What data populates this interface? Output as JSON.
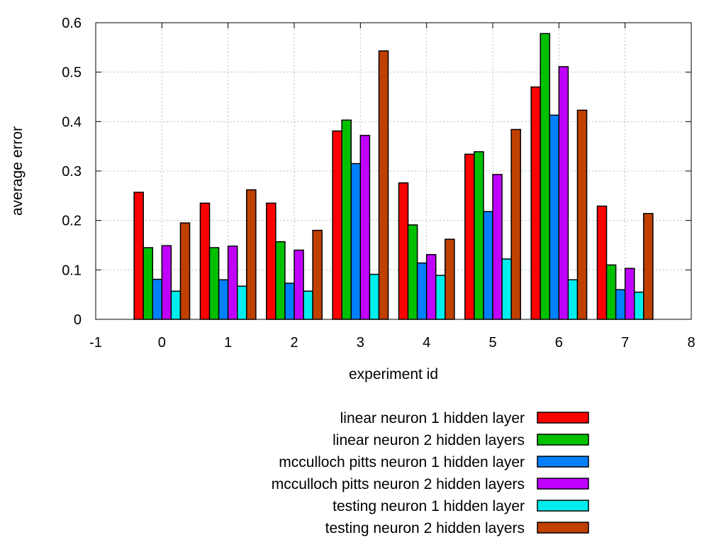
{
  "chart_data": {
    "type": "bar",
    "title": "",
    "xlabel": "experiment id",
    "ylabel": "average error",
    "xlim": [
      -1,
      8
    ],
    "ylim": [
      0,
      0.6
    ],
    "xticks": [
      "-1",
      "0",
      "1",
      "2",
      "3",
      "4",
      "5",
      "6",
      "7",
      "8"
    ],
    "yticks": [
      "0",
      "0.1",
      "0.2",
      "0.3",
      "0.4",
      "0.5",
      "0.6"
    ],
    "grid": true,
    "legend_position": "bottom-center",
    "categories": [
      0,
      1,
      2,
      3,
      4,
      5,
      6,
      7
    ],
    "series": [
      {
        "name": "linear neuron 1 hidden layer",
        "color": "#ff0000",
        "values": [
          0.257,
          0.235,
          0.235,
          0.381,
          0.276,
          0.334,
          0.47,
          0.229
        ]
      },
      {
        "name": "linear neuron 2 hidden layers",
        "color": "#00c000",
        "values": [
          0.145,
          0.145,
          0.157,
          0.403,
          0.191,
          0.339,
          0.578,
          0.11
        ]
      },
      {
        "name": "mcculloch pitts neuron 1 hidden layer",
        "color": "#0080ff",
        "values": [
          0.081,
          0.08,
          0.073,
          0.315,
          0.114,
          0.218,
          0.413,
          0.06
        ]
      },
      {
        "name": "mcculloch pitts neuron 2 hidden layers",
        "color": "#c000ff",
        "values": [
          0.149,
          0.148,
          0.14,
          0.372,
          0.131,
          0.293,
          0.511,
          0.103
        ]
      },
      {
        "name": "testing neuron 1 hidden layer",
        "color": "#00eeee",
        "values": [
          0.057,
          0.067,
          0.057,
          0.091,
          0.089,
          0.122,
          0.08,
          0.055
        ]
      },
      {
        "name": "testing neuron 2 hidden layers",
        "color": "#c04000",
        "values": [
          0.195,
          0.262,
          0.18,
          0.543,
          0.162,
          0.384,
          0.423,
          0.214
        ]
      }
    ]
  }
}
